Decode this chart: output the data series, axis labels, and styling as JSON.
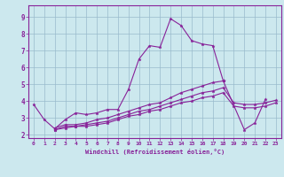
{
  "xlabel": "Windchill (Refroidissement éolien,°C)",
  "bg_color": "#cce8ee",
  "grid_color": "#99bbcc",
  "line_color": "#882299",
  "xlim": [
    -0.5,
    23.5
  ],
  "ylim": [
    1.8,
    9.7
  ],
  "xticks": [
    0,
    1,
    2,
    3,
    4,
    5,
    6,
    7,
    8,
    9,
    10,
    11,
    12,
    13,
    14,
    15,
    16,
    17,
    18,
    19,
    20,
    21,
    22,
    23
  ],
  "yticks": [
    2,
    3,
    4,
    5,
    6,
    7,
    8,
    9
  ],
  "lines": [
    {
      "x": [
        0,
        1,
        2,
        3,
        4,
        5,
        6,
        7,
        8,
        9,
        10,
        11,
        12,
        13,
        14,
        15,
        16,
        17,
        18
      ],
      "y": [
        3.8,
        2.9,
        2.35,
        2.9,
        3.3,
        3.2,
        3.3,
        3.5,
        3.5,
        4.7,
        6.5,
        7.3,
        7.2,
        8.9,
        8.5,
        7.6,
        7.4,
        7.3,
        5.2
      ]
    },
    {
      "x": [
        2,
        3,
        4,
        5,
        6,
        7,
        8,
        9,
        10,
        11,
        12,
        13,
        14,
        15,
        16,
        17,
        18
      ],
      "y": [
        2.4,
        2.6,
        2.6,
        2.7,
        2.9,
        3.0,
        3.2,
        3.4,
        3.6,
        3.8,
        3.9,
        4.2,
        4.5,
        4.7,
        4.9,
        5.1,
        5.2
      ]
    },
    {
      "x": [
        2,
        3,
        4,
        5,
        6,
        7,
        8,
        9,
        10,
        11,
        12,
        13,
        14,
        15,
        16,
        17,
        18,
        19,
        20,
        21,
        22,
        23
      ],
      "y": [
        2.3,
        2.5,
        2.5,
        2.6,
        2.7,
        2.8,
        3.0,
        3.2,
        3.4,
        3.5,
        3.7,
        3.9,
        4.1,
        4.3,
        4.5,
        4.6,
        4.8,
        3.9,
        3.8,
        3.8,
        3.9,
        4.05
      ]
    },
    {
      "x": [
        2,
        3,
        4,
        5,
        6,
        7,
        8,
        9,
        10,
        11,
        12,
        13,
        14,
        15,
        16,
        17,
        18,
        19,
        20,
        21,
        22,
        23
      ],
      "y": [
        2.3,
        2.4,
        2.5,
        2.5,
        2.6,
        2.7,
        2.9,
        3.1,
        3.2,
        3.4,
        3.5,
        3.7,
        3.9,
        4.0,
        4.2,
        4.3,
        4.5,
        3.7,
        3.6,
        3.6,
        3.7,
        3.9
      ]
    },
    {
      "x": [
        18,
        20,
        21,
        22
      ],
      "y": [
        5.2,
        2.3,
        2.7,
        4.1
      ]
    }
  ]
}
